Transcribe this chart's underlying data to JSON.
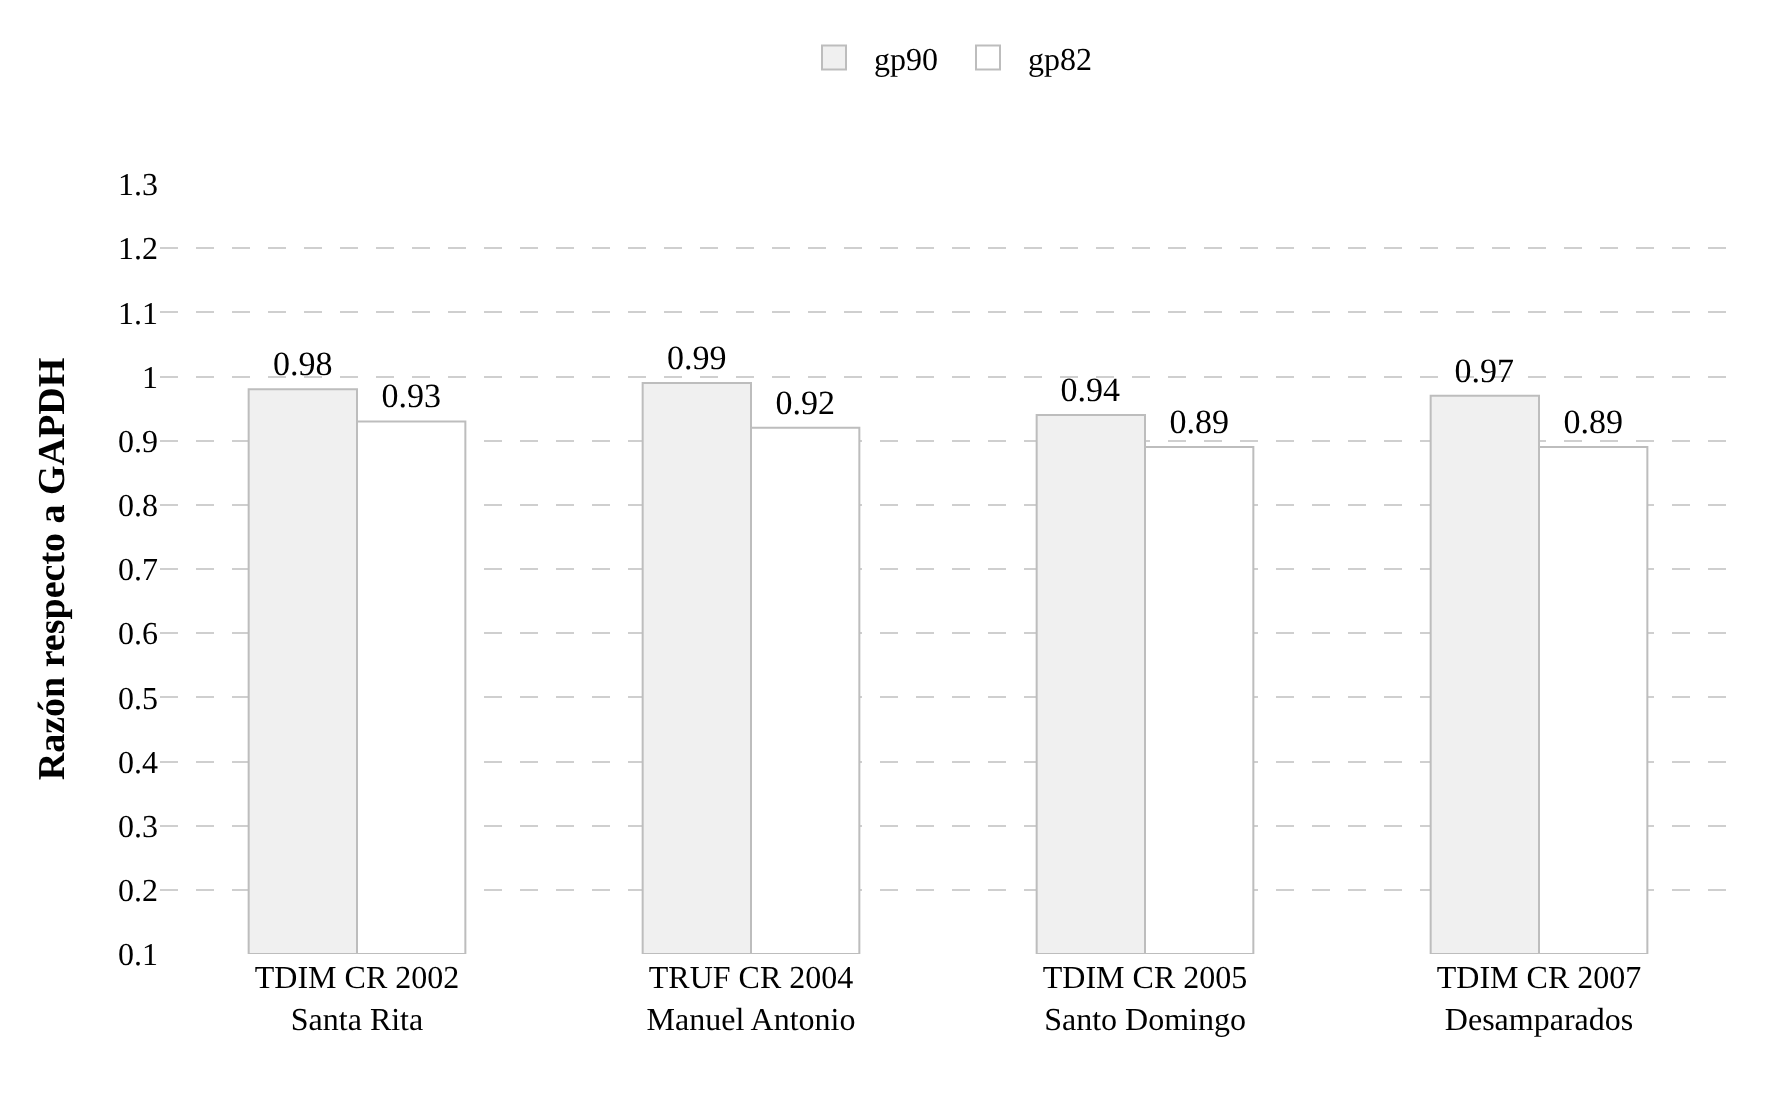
{
  "chart_data": {
    "type": "bar",
    "ylabel": "Razón respecto a GAPDH",
    "categories": [
      "TDIM CR 2002\nSanta Rita",
      "TRUF CR 2004\nManuel Antonio",
      "TDIM CR 2005\nSanto Domingo",
      "TDIM CR 2007\nDesamparados"
    ],
    "series": [
      {
        "name": "gp90",
        "color": "#f0f0f0",
        "values": [
          0.98,
          0.99,
          0.94,
          0.97
        ]
      },
      {
        "name": "gp82",
        "color": "#ffffff",
        "values": [
          0.93,
          0.92,
          0.89,
          0.89
        ]
      }
    ],
    "ylim": [
      0.1,
      1.3
    ],
    "yticks": [
      0.1,
      0.2,
      0.3,
      0.4,
      0.5,
      0.6,
      0.7,
      0.8,
      0.9,
      1,
      1.1,
      1.2,
      1.3
    ],
    "grid": "y",
    "legend": "top",
    "data_labels": true
  }
}
